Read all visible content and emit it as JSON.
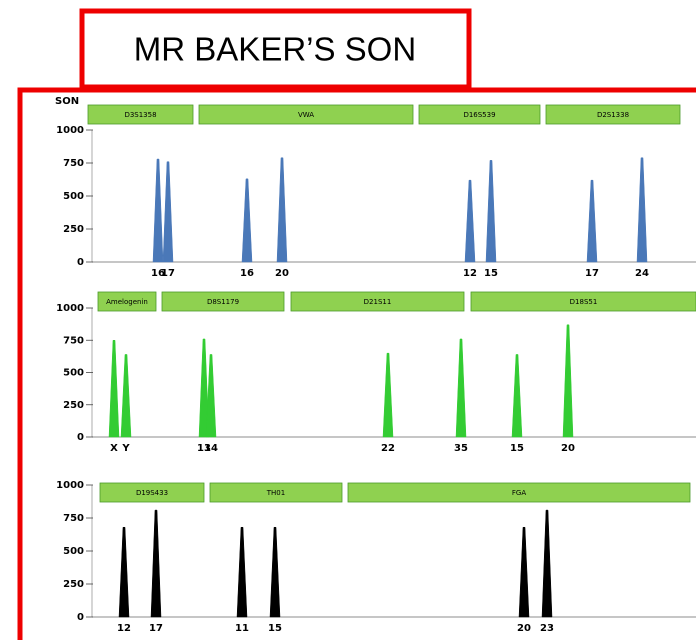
{
  "header": {
    "title": "MR BAKER’S SON"
  },
  "chart_data": [
    {
      "type": "peak",
      "title": "SON",
      "color": "#4a78b8",
      "ylim": [
        0,
        1000
      ],
      "yticks": [
        0,
        250,
        500,
        750,
        1000
      ],
      "loci": [
        "D3S1358",
        "VWA",
        "D16S539",
        "D2S1338"
      ],
      "categories": [
        "16",
        "17",
        "16",
        "20",
        "12",
        "15",
        "17",
        "24"
      ],
      "values": [
        780,
        760,
        630,
        790,
        620,
        770,
        620,
        790
      ]
    },
    {
      "type": "peak",
      "color": "#33cc33",
      "ylim": [
        0,
        1000
      ],
      "yticks": [
        0,
        250,
        500,
        750,
        1000
      ],
      "loci": [
        "Amelogenin",
        "D8S1179",
        "D21S11",
        "D18S51"
      ],
      "categories": [
        "X",
        "Y",
        "13",
        "14",
        "22",
        "35",
        "15",
        "20"
      ],
      "values": [
        750,
        640,
        760,
        640,
        650,
        760,
        640,
        870
      ]
    },
    {
      "type": "peak",
      "color": "#000000",
      "ylim": [
        0,
        1000
      ],
      "yticks": [
        0,
        250,
        500,
        750,
        1000
      ],
      "loci": [
        "D19S433",
        "TH01",
        "FGA"
      ],
      "categories": [
        "12",
        "17",
        "11",
        "15",
        "20",
        "23"
      ],
      "values": [
        680,
        810,
        680,
        680,
        680,
        810
      ]
    }
  ]
}
